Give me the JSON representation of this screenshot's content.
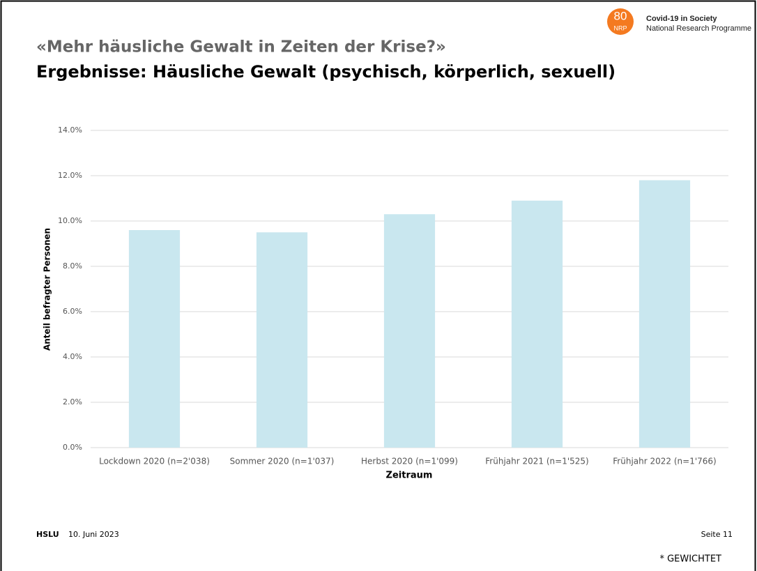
{
  "logo": {
    "number": "80",
    "code": "NRP",
    "line1": "Covid-19 in Society",
    "line2": "National Research Programme"
  },
  "header": {
    "title": "«Mehr häusliche Gewalt in Zeiten der Krise?»",
    "subtitle": "Ergebnisse: Häusliche Gewalt (psychisch, körperlich, sexuell)"
  },
  "chart_data": {
    "type": "bar",
    "categories": [
      "Lockdown 2020 (n=2'038)",
      "Sommer 2020 (n=1'037)",
      "Herbst 2020 (n=1'099)",
      "Frühjahr 2021 (n=1'525)",
      "Frühjahr 2022 (n=1'766)"
    ],
    "values": [
      9.6,
      9.5,
      10.3,
      10.9,
      11.8
    ],
    "color": "#c9e7ef",
    "x_label": "Zeitraum",
    "y_label": "Anteil befragter Personen",
    "ylim": [
      0,
      14
    ],
    "yticks": [
      {
        "value": 0,
        "label": "0.0%"
      },
      {
        "value": 2,
        "label": "2.0%"
      },
      {
        "value": 4,
        "label": "4.0%"
      },
      {
        "value": 6,
        "label": "6.0%"
      },
      {
        "value": 8,
        "label": "8.0%"
      },
      {
        "value": 10,
        "label": "10.0%"
      },
      {
        "value": 12,
        "label": "12.0%"
      },
      {
        "value": 14,
        "label": "14.0%"
      }
    ],
    "grid": true
  },
  "footer": {
    "org": "HSLU",
    "date": "10. Juni 2023",
    "page": "Seite 11",
    "note": "* GEWICHTET"
  }
}
